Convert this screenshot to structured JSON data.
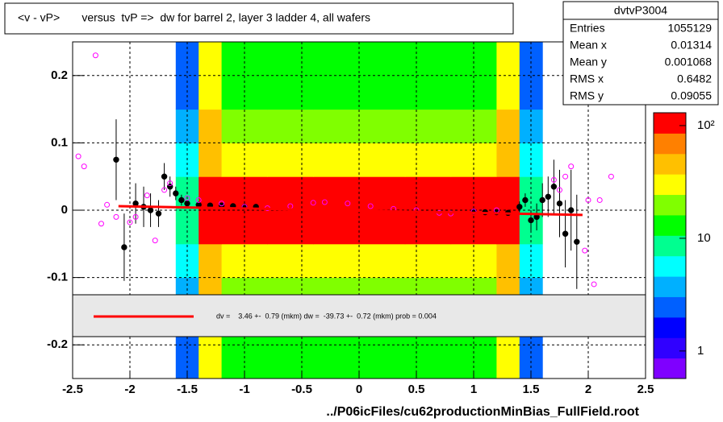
{
  "chart_data": {
    "type": "histogram2d",
    "title": "<v - vP>       versus  tvP =>  dw for barrel 2, layer 3 ladder 4, all wafers",
    "x_label": "../P06icFiles/cu62productionMinBias_FullField.root",
    "xlim": [
      -2.5,
      2.5
    ],
    "ylim": [
      -0.25,
      0.25
    ],
    "xticks": [
      -2.5,
      -2,
      -1.5,
      -1,
      -0.5,
      0,
      0.5,
      1,
      1.5,
      2,
      2.5
    ],
    "yticks": [
      -0.2,
      -0.1,
      0,
      0.1,
      0.2
    ],
    "grid": true,
    "zlog": true,
    "zlim": [
      0.57,
      130
    ],
    "zticks": [
      1,
      10,
      {
        "value": 100,
        "label": "10²"
      }
    ],
    "palette": [
      "#7f00ff",
      "#3000ff",
      "#0000ff",
      "#0060ff",
      "#00b0ff",
      "#00ffff",
      "#00ff90",
      "#00ff00",
      "#80ff00",
      "#ffff00",
      "#ffc000",
      "#ff8000",
      "#ff0000"
    ],
    "heatmap": {
      "xbins": [
        -2.5,
        -1.6,
        -1.4,
        -1.2,
        -0.8,
        -0.4,
        0,
        0.4,
        0.8,
        1.2,
        1.4,
        1.6,
        2.5
      ],
      "ybins": [
        -0.25,
        -0.2,
        -0.15,
        -0.1,
        -0.05,
        0,
        0.05,
        0.1,
        0.15,
        0.2,
        0.25
      ],
      "z": [
        [
          null,
          3,
          30,
          12,
          12,
          12,
          12,
          12,
          12,
          30,
          3,
          null
        ],
        [
          null,
          3,
          35,
          14,
          14,
          14,
          14,
          14,
          14,
          35,
          3,
          null
        ],
        [
          null,
          4,
          40,
          18,
          18,
          18,
          18,
          18,
          18,
          40,
          4,
          null
        ],
        [
          null,
          5,
          50,
          25,
          25,
          25,
          25,
          25,
          25,
          50,
          5,
          null
        ],
        [
          null,
          8,
          110,
          90,
          90,
          120,
          120,
          90,
          90,
          110,
          8,
          null
        ],
        [
          null,
          8,
          110,
          90,
          90,
          120,
          120,
          90,
          90,
          110,
          8,
          null
        ],
        [
          null,
          5,
          50,
          25,
          25,
          25,
          25,
          25,
          25,
          50,
          5,
          null
        ],
        [
          null,
          4,
          40,
          18,
          18,
          18,
          18,
          18,
          18,
          40,
          4,
          null
        ],
        [
          null,
          3,
          35,
          14,
          14,
          14,
          14,
          14,
          14,
          35,
          3,
          null
        ],
        [
          null,
          3,
          30,
          12,
          12,
          12,
          12,
          12,
          12,
          30,
          3,
          null
        ]
      ]
    },
    "series": [
      {
        "color": "#000000",
        "x": [
          -2.12,
          -2.05,
          -1.95,
          -1.88,
          -1.82,
          -1.75,
          -1.7,
          -1.65,
          -1.6,
          -1.55,
          -1.5,
          -1.4,
          -1.3,
          -1.2,
          -1.1,
          -1.0,
          -0.9,
          1.0,
          1.1,
          1.2,
          1.3,
          1.4,
          1.45,
          1.5,
          1.55,
          1.6,
          1.65,
          1.7,
          1.75,
          1.8,
          1.85,
          1.9
        ],
        "values": [
          0.075,
          -0.055,
          0.01,
          0.005,
          0.0,
          -0.005,
          0.05,
          0.035,
          0.025,
          0.015,
          0.01,
          0.008,
          0.007,
          0.007,
          0.006,
          0.005,
          0.005,
          -0.002,
          -0.003,
          -0.003,
          -0.004,
          0.005,
          0.015,
          -0.015,
          -0.01,
          0.015,
          0.02,
          0.035,
          0.01,
          -0.035,
          0.0,
          -0.047
        ],
        "errors": [
          0.06,
          0.05,
          0.03,
          0.03,
          0.025,
          0.02,
          0.02,
          0.015,
          0.01,
          0.008,
          0.005,
          0.002,
          0.002,
          0.002,
          0.002,
          0.002,
          0.002,
          0.002,
          0.002,
          0.002,
          0.003,
          0.008,
          0.01,
          0.015,
          0.02,
          0.025,
          0.03,
          0.04,
          0.05,
          0.05,
          0.06,
          0.07
        ]
      },
      {
        "color": "#ff00ff",
        "x": [
          -2.45,
          -2.4,
          -2.3,
          -2.25,
          -2.2,
          -2.12,
          -2.0,
          -1.95,
          -1.85,
          -1.78,
          -1.7,
          -1.65,
          -1.5,
          -1.4,
          -1.2,
          -1.0,
          -0.8,
          -0.6,
          -0.4,
          -0.3,
          -0.1,
          0.1,
          0.3,
          0.5,
          0.7,
          0.8,
          1.0,
          1.2,
          1.7,
          1.75,
          1.8,
          1.85,
          1.92,
          1.97,
          2.0,
          2.05,
          2.1,
          2.2,
          2.28
        ],
        "values": [
          0.08,
          0.065,
          0.23,
          -0.02,
          0.008,
          -0.01,
          -0.018,
          -0.01,
          0.022,
          -0.045,
          0.03,
          0.04,
          0.018,
          0.015,
          0.01,
          0.005,
          0.003,
          0.006,
          0.011,
          0.012,
          0.01,
          0.006,
          0.002,
          0.0,
          -0.004,
          -0.005,
          -0.002,
          0.0,
          0.045,
          0.03,
          0.05,
          0.065,
          0.23,
          -0.06,
          0.015,
          -0.11,
          0.015,
          0.05,
          0.18
        ]
      }
    ],
    "fit": {
      "color": "#ff0000",
      "x": [
        -2.1,
        1.95
      ],
      "values": [
        0.006,
        -0.007
      ]
    },
    "fit_label": "dv =    3.46 +-  0.79 (mkm) dw =  -39.73 +-  0.72 (mkm) prob = 0.004",
    "stats": {
      "title": "dvtvP3004",
      "rows": [
        [
          "Entries",
          "1055129"
        ],
        [
          "Mean x",
          "0.01314"
        ],
        [
          "Mean y",
          "0.001068"
        ],
        [
          "RMS x",
          "0.6482"
        ],
        [
          "RMS y",
          "0.09055"
        ]
      ]
    }
  }
}
